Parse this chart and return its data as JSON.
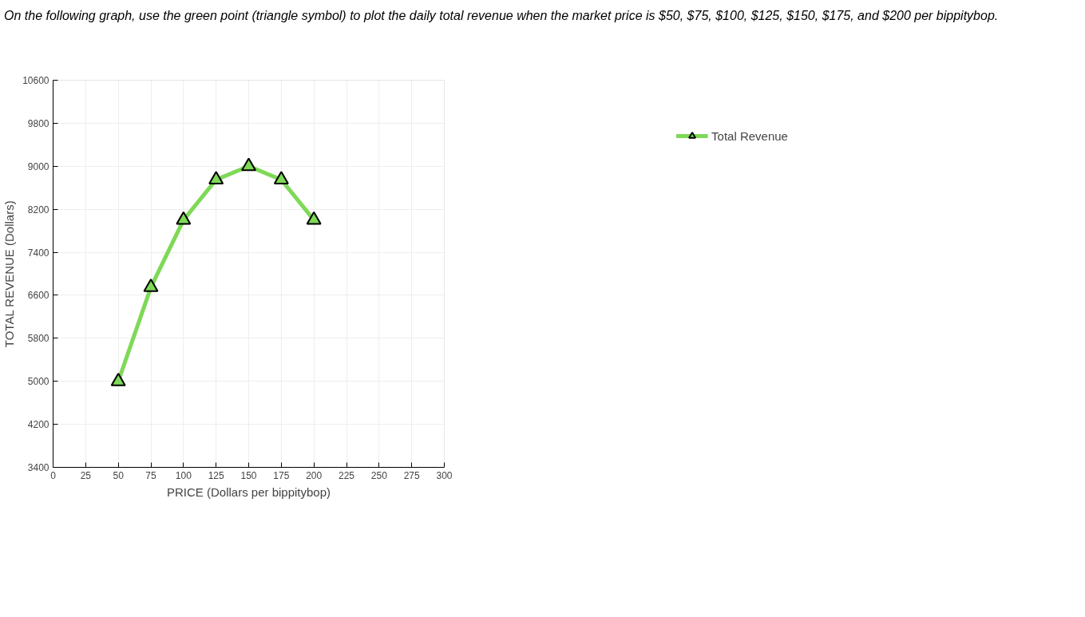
{
  "chart_data": {
    "type": "line",
    "title": "On the following graph, use the green point (triangle symbol) to plot the daily total revenue when the market price is $50, $75, $100, $125, $150, $175, and $200 per bippitybop.",
    "xlabel": "PRICE (Dollars per bippitybop)",
    "ylabel": "TOTAL REVENUE (Dollars)",
    "x": [
      50,
      75,
      100,
      125,
      150,
      175,
      200
    ],
    "series": [
      {
        "name": "Total Revenue",
        "color": "#7ed957",
        "values": [
          5000,
          6750,
          8000,
          8750,
          9000,
          8750,
          8000
        ]
      }
    ],
    "xlim": [
      0,
      300
    ],
    "xticks": [
      0,
      25,
      50,
      75,
      100,
      125,
      150,
      175,
      200,
      225,
      250,
      275,
      300
    ],
    "ylim": [
      3400,
      10600
    ],
    "yticks": [
      3400,
      4200,
      5000,
      5800,
      6600,
      7400,
      8200,
      9000,
      9800,
      10600
    ],
    "grid": true,
    "legend": "right",
    "marker": "triangle",
    "line_style": "solid"
  }
}
